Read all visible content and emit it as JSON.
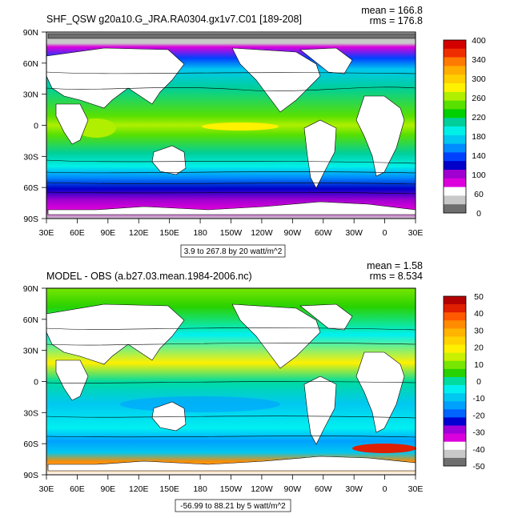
{
  "panels": [
    {
      "title": "SHF_QSW g20a10.G_JRA.RA0304.gx1v7.C01 [189-208]",
      "mean_label": "mean = 166.8",
      "rms_label": "rms = 176.8",
      "lat_labels": [
        "90N",
        "60N",
        "30N",
        "0",
        "30S",
        "60S",
        "90S"
      ],
      "lon_labels": [
        "30E",
        "60E",
        "90E",
        "120E",
        "150E",
        "180",
        "150W",
        "120W",
        "90W",
        "60W",
        "30W",
        "0",
        "30E"
      ],
      "range_label": "3.9 to 267.8 by 20 watt/m^2",
      "colorbar_labels": [
        "400",
        "340",
        "300",
        "260",
        "220",
        "180",
        "140",
        "100",
        "60",
        "0"
      ],
      "colorbar_colors": [
        "#d40000",
        "#ef2d00",
        "#ff7a00",
        "#ffad00",
        "#ffd000",
        "#fff200",
        "#b0ef00",
        "#58e000",
        "#00d000",
        "#00cf9b",
        "#00f0e8",
        "#00c8f0",
        "#008bff",
        "#0041ff",
        "#0000c8",
        "#a000d0",
        "#dc00dc",
        "#ffffff",
        "#c8c8c8",
        "#6e6e6e"
      ]
    },
    {
      "title": "MODEL - OBS (a.b27.03.mean.1984-2006.nc)",
      "mean_label": "mean = 1.58",
      "rms_label": "rms = 8.534",
      "lat_labels": [
        "90N",
        "60N",
        "30N",
        "0",
        "30S",
        "60S",
        "90S"
      ],
      "lon_labels": [
        "30E",
        "60E",
        "90E",
        "120E",
        "150E",
        "180",
        "150W",
        "120W",
        "90W",
        "60W",
        "30W",
        "0",
        "30E"
      ],
      "range_label": "-56.99 to 88.21 by 5 watt/m^2",
      "colorbar_labels": [
        "50",
        "40",
        "30",
        "20",
        "10",
        "0",
        "-10",
        "-20",
        "-30",
        "-40",
        "-50"
      ],
      "colorbar_colors": [
        "#b40000",
        "#e01e00",
        "#ff5a00",
        "#ff8c00",
        "#ffb400",
        "#ffd200",
        "#fff000",
        "#c8f000",
        "#78e600",
        "#28d200",
        "#00dca0",
        "#00f0f0",
        "#00c8f0",
        "#00a0ff",
        "#0064ff",
        "#0000d2",
        "#a000dc",
        "#dc00dc",
        "#ffffff",
        "#c8c8c8",
        "#6e6e6e"
      ]
    }
  ]
}
